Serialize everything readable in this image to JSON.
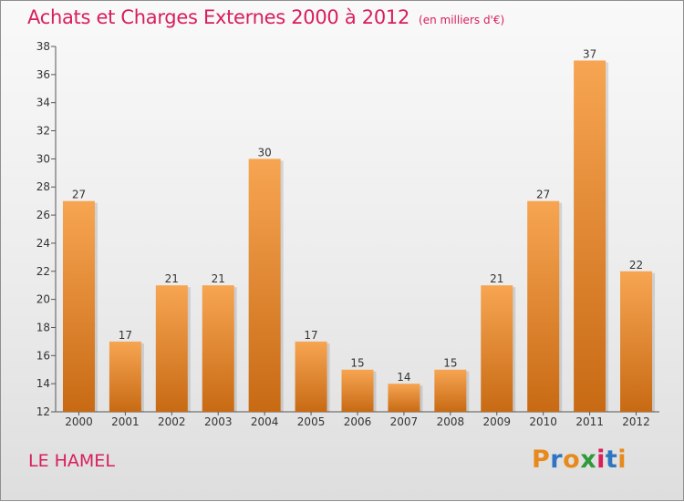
{
  "title": "Achats et Charges Externes 2000 à 2012",
  "unit": "(en milliers d'€)",
  "commune": "LE HAMEL",
  "logo_text": "Proxiti",
  "logo_colors": [
    "#e8891c",
    "#2f76c2",
    "#e8891c",
    "#2f9a3a",
    "#d81e5b",
    "#2f76c2",
    "#e8891c"
  ],
  "colors": {
    "title": "#d81e5b",
    "bar_top": "#f7a552",
    "bar_bottom": "#c86a14"
  },
  "chart_data": {
    "type": "bar",
    "categories": [
      "2000",
      "2001",
      "2002",
      "2003",
      "2004",
      "2005",
      "2006",
      "2007",
      "2008",
      "2009",
      "2010",
      "2011",
      "2012"
    ],
    "values": [
      27,
      17,
      21,
      21,
      30,
      17,
      15,
      14,
      15,
      21,
      27,
      37,
      22
    ],
    "ylim": [
      12,
      38
    ],
    "yticks": [
      12,
      14,
      16,
      18,
      20,
      22,
      24,
      26,
      28,
      30,
      32,
      34,
      36,
      38
    ],
    "data_labels": true,
    "grid": false
  }
}
